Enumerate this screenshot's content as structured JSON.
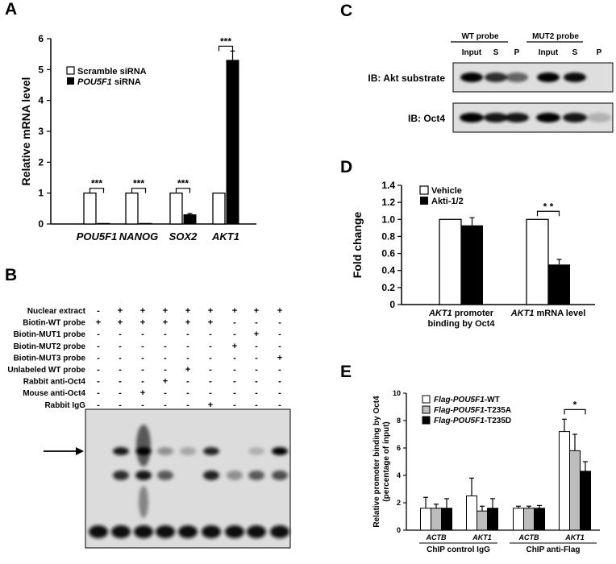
{
  "panels": {
    "A": "A",
    "B": "B",
    "C": "C",
    "D": "D",
    "E": "E"
  },
  "chart_data": [
    {
      "id": "A",
      "type": "bar",
      "ylabel": "Relative mRNA level",
      "ylim": [
        0,
        6
      ],
      "yticks": [
        "0",
        "1",
        "2",
        "3",
        "4",
        "5",
        "6"
      ],
      "categories": [
        "POU5F1",
        "NANOG",
        "SOX2",
        "AKT1"
      ],
      "series": [
        {
          "name": "Scramble siRNA",
          "color": "#ffffff",
          "values": [
            1,
            1,
            1,
            1
          ]
        },
        {
          "name_italic": "POU5F1",
          "name_rest": " siRNA",
          "color": "#000000",
          "values": [
            0.02,
            0.02,
            0.3,
            5.3
          ],
          "err": [
            0,
            0,
            0.04,
            0.3
          ]
        }
      ],
      "significance": [
        "***",
        "***",
        "***",
        "***"
      ]
    },
    {
      "id": "D",
      "type": "bar",
      "ylabel": "Fold change",
      "ylim": [
        0,
        1.4
      ],
      "yticks": [
        "0",
        "0.2",
        "0.4",
        "0.6",
        "0.8",
        "1.0",
        "1.2",
        "1.4"
      ],
      "categories": [
        {
          "italic": "AKT1",
          "rest": " promoter",
          "line2": "binding by Oct4"
        },
        {
          "italic": "AKT1",
          "rest": " mRNA level",
          "line2": ""
        }
      ],
      "series": [
        {
          "name": "Vehicle",
          "color": "#ffffff",
          "values": [
            1.0,
            1.0
          ]
        },
        {
          "name": "Akti-1/2",
          "color": "#000000",
          "values": [
            0.93,
            0.47
          ],
          "err": [
            0.09,
            0.06
          ]
        }
      ],
      "significance": [
        "",
        "* *"
      ]
    },
    {
      "id": "E",
      "type": "bar",
      "ylabel_line1": "Relative promoter binding by Oct4",
      "ylabel_line2": "(percentage of input)",
      "ylim": [
        0,
        10
      ],
      "yticks": [
        "0",
        "2",
        "4",
        "6",
        "8",
        "10"
      ],
      "categories": [
        "ACTB",
        "AKT1",
        "ACTB",
        "AKT1"
      ],
      "groups": [
        "ChIP control IgG",
        "ChIP anti-Flag"
      ],
      "series": [
        {
          "name_italic": "Flag-POU5F1",
          "name_rest": "-WT",
          "color": "#ffffff",
          "values": [
            1.6,
            2.5,
            1.6,
            7.2
          ],
          "err": [
            0.8,
            1.3,
            0.15,
            0.9
          ]
        },
        {
          "name_italic": "Flag-POU5F1",
          "name_rest": "-T235A",
          "color": "#bdbdbd",
          "values": [
            1.6,
            1.4,
            1.6,
            5.8
          ],
          "err": [
            0.3,
            0.35,
            0.15,
            1.2
          ]
        },
        {
          "name_italic": "Flag-POU5F1",
          "name_rest": "-T235D",
          "color": "#000000",
          "values": [
            1.6,
            1.6,
            1.6,
            4.3
          ],
          "err": [
            0.7,
            0.7,
            0.2,
            0.7
          ]
        }
      ],
      "significance": [
        "",
        "",
        "",
        "*"
      ]
    }
  ],
  "panel_B": {
    "rows": [
      {
        "label": "Nuclear extract",
        "marks": [
          "-",
          "+",
          "+",
          "+",
          "+",
          "+",
          "+",
          "+",
          "+"
        ]
      },
      {
        "label": "Biotin-WT probe",
        "marks": [
          "+",
          "+",
          "+",
          "+",
          "+",
          "+",
          "-",
          "-",
          "-"
        ]
      },
      {
        "label": "Biotin-MUT1 probe",
        "marks": [
          "-",
          "-",
          "-",
          "-",
          "-",
          "-",
          "-",
          "+",
          "-"
        ]
      },
      {
        "label": "Biotin-MUT2 probe",
        "marks": [
          "-",
          "-",
          "-",
          "-",
          "-",
          "-",
          "+",
          "-",
          "-"
        ]
      },
      {
        "label": "Biotin-MUT3 probe",
        "marks": [
          "-",
          "-",
          "-",
          "-",
          "-",
          "-",
          "-",
          "-",
          "+"
        ]
      },
      {
        "label": "Unlabeled WT probe",
        "marks": [
          "-",
          "-",
          "-",
          "-",
          "+",
          "-",
          "-",
          "-",
          "-"
        ]
      },
      {
        "label": "Rabbit anti-Oct4",
        "marks": [
          "-",
          "-",
          "-",
          "+",
          "-",
          "-",
          "-",
          "-",
          "-"
        ]
      },
      {
        "label": "Mouse anti-Oct4",
        "marks": [
          "-",
          "-",
          "+",
          "-",
          "-",
          "-",
          "-",
          "-",
          "-"
        ]
      },
      {
        "label": "Rabbit IgG",
        "marks": [
          "-",
          "-",
          "-",
          "-",
          "-",
          "+",
          "-",
          "-",
          "-"
        ]
      }
    ],
    "arrow": "arrow-icon"
  },
  "panel_C": {
    "probes": [
      "WT probe",
      "MUT2 probe"
    ],
    "lanes": [
      "Input",
      "S",
      "P",
      "Input",
      "S",
      "P"
    ],
    "blots": [
      "IB: Akt substrate",
      "IB: Oct4"
    ]
  }
}
